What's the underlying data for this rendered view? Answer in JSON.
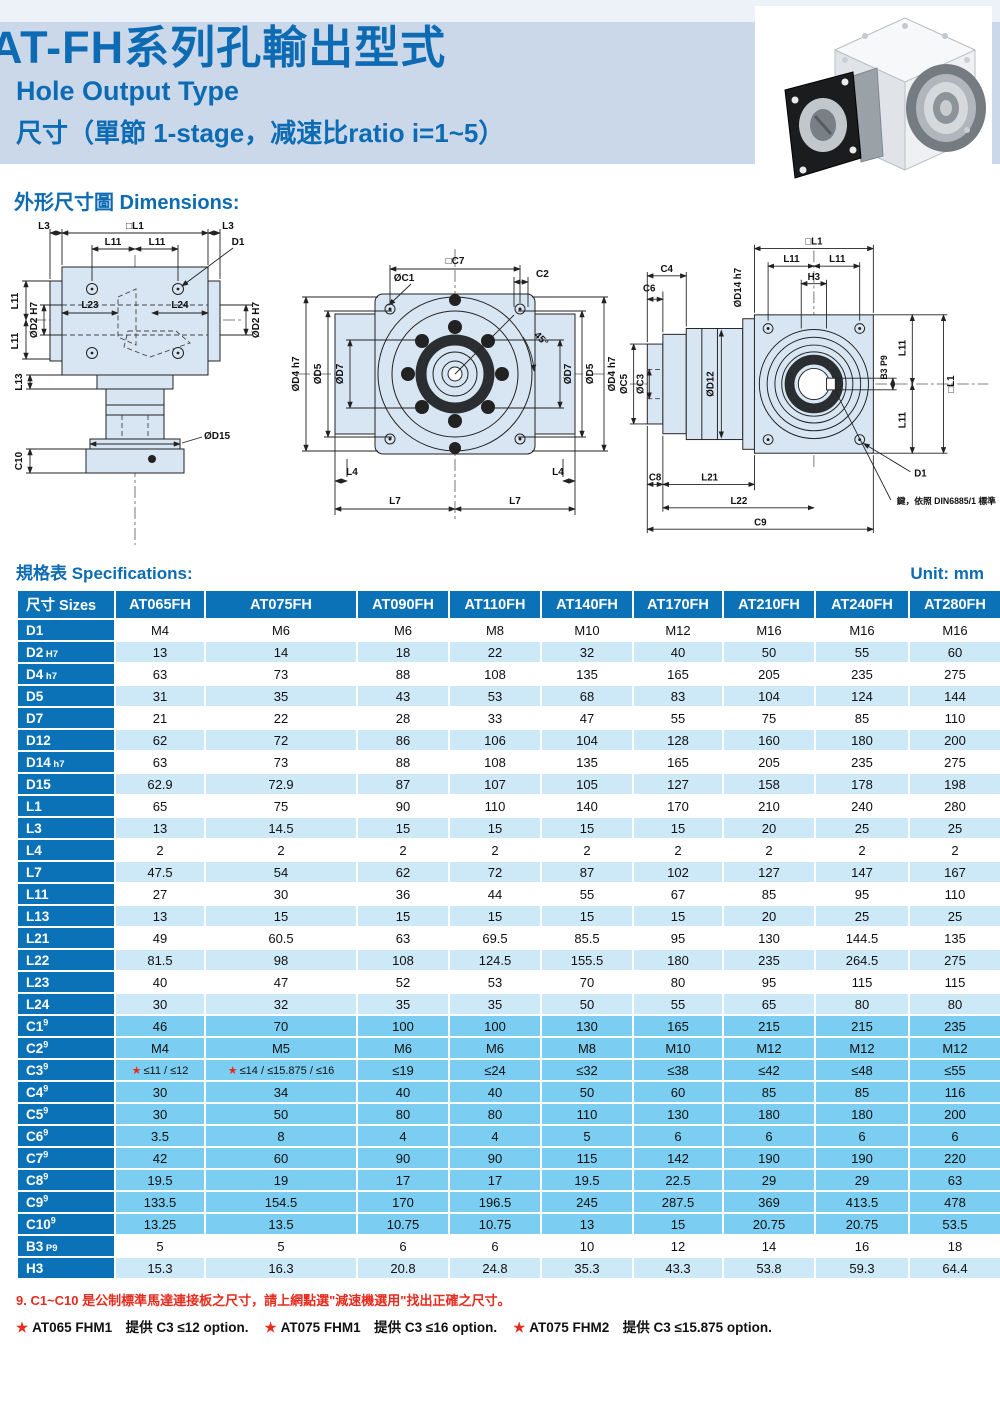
{
  "header": {
    "title": "AT-FH系列孔輸出型式",
    "subtitle_en": "Hole Output Type",
    "subtitle_zh": "尺寸（單節 1-stage，减速比ratio i=1~5）"
  },
  "sections": {
    "dimensions_heading": "外形尺寸圖 Dimensions:",
    "specs_heading": "規格表 Specifications:",
    "unit": "Unit: mm"
  },
  "drawings": {
    "left": {
      "l3_a": "L3",
      "l1": "□L1",
      "l3_b": "L3",
      "l11_a": "L11",
      "l11_b": "L11",
      "d1": "D1",
      "l23": "L23",
      "l24": "L24",
      "d2_r": "ØD2 H7",
      "l11_c": "L11",
      "l11_d": "L11",
      "d2_l": "ØD2 H7",
      "l13": "L13",
      "c10": "C10",
      "d15": "ØD15"
    },
    "front": {
      "c7": "□C7",
      "c1": "ØC1",
      "c2": "C2",
      "angle": "45°",
      "d4_l": "ØD4 h7",
      "d5_l": "ØD5",
      "d7_l": "ØD7",
      "d7_r": "ØD7",
      "d5_r": "ØD5",
      "d4_r": "ØD4 h7",
      "l4_a": "L4",
      "l4_b": "L4",
      "l7_a": "L7",
      "l7_b": "L7"
    },
    "right": {
      "c4": "C4",
      "c6": "C6",
      "d14": "ØD14 h7",
      "l1_top": "□L1",
      "l11_a": "L11",
      "l11_b": "L11",
      "h3": "H3",
      "c5": "ØC5",
      "c3": "ØC3",
      "d12": "ØD12",
      "l11_c": "L11",
      "l11_d": "L11",
      "b3": "B3 P9",
      "l1_r": "□L1",
      "d1": "D1",
      "c8": "C8",
      "l21": "L21",
      "l22": "L22",
      "c9": "C9",
      "key_note": "鍵，依照 DIN6885/1 標準"
    }
  },
  "table": {
    "size_header": "尺寸 Sizes",
    "columns": [
      "AT065FH",
      "AT075FH",
      "AT090FH",
      "AT110FH",
      "AT140FH",
      "AT170FH",
      "AT210FH",
      "AT240FH",
      "AT280FH"
    ],
    "rows": [
      {
        "label": "D1",
        "suffix": "",
        "sup": "",
        "bg": "w",
        "values": [
          "M4",
          "M6",
          "M6",
          "M8",
          "M10",
          "M12",
          "M16",
          "M16",
          "M16"
        ]
      },
      {
        "label": "D2",
        "suffix": "H7",
        "sup": "",
        "bg": "lb",
        "values": [
          "13",
          "14",
          "18",
          "22",
          "32",
          "40",
          "50",
          "55",
          "60"
        ]
      },
      {
        "label": "D4",
        "suffix": "h7",
        "sup": "",
        "bg": "w",
        "values": [
          "63",
          "73",
          "88",
          "108",
          "135",
          "165",
          "205",
          "235",
          "275"
        ]
      },
      {
        "label": "D5",
        "suffix": "",
        "sup": "",
        "bg": "lb",
        "values": [
          "31",
          "35",
          "43",
          "53",
          "68",
          "83",
          "104",
          "124",
          "144"
        ]
      },
      {
        "label": "D7",
        "suffix": "",
        "sup": "",
        "bg": "w",
        "values": [
          "21",
          "22",
          "28",
          "33",
          "47",
          "55",
          "75",
          "85",
          "110"
        ]
      },
      {
        "label": "D12",
        "suffix": "",
        "sup": "",
        "bg": "lb",
        "values": [
          "62",
          "72",
          "86",
          "106",
          "104",
          "128",
          "160",
          "180",
          "200"
        ]
      },
      {
        "label": "D14",
        "suffix": "h7",
        "sup": "",
        "bg": "w",
        "values": [
          "63",
          "73",
          "88",
          "108",
          "135",
          "165",
          "205",
          "235",
          "275"
        ]
      },
      {
        "label": "D15",
        "suffix": "",
        "sup": "",
        "bg": "lb",
        "values": [
          "62.9",
          "72.9",
          "87",
          "107",
          "105",
          "127",
          "158",
          "178",
          "198"
        ]
      },
      {
        "label": "L1",
        "suffix": "",
        "sup": "",
        "bg": "w",
        "values": [
          "65",
          "75",
          "90",
          "110",
          "140",
          "170",
          "210",
          "240",
          "280"
        ]
      },
      {
        "label": "L3",
        "suffix": "",
        "sup": "",
        "bg": "lb",
        "values": [
          "13",
          "14.5",
          "15",
          "15",
          "15",
          "15",
          "20",
          "25",
          "25"
        ]
      },
      {
        "label": "L4",
        "suffix": "",
        "sup": "",
        "bg": "w",
        "values": [
          "2",
          "2",
          "2",
          "2",
          "2",
          "2",
          "2",
          "2",
          "2"
        ]
      },
      {
        "label": "L7",
        "suffix": "",
        "sup": "",
        "bg": "lb",
        "values": [
          "47.5",
          "54",
          "62",
          "72",
          "87",
          "102",
          "127",
          "147",
          "167"
        ]
      },
      {
        "label": "L11",
        "suffix": "",
        "sup": "",
        "bg": "w",
        "values": [
          "27",
          "30",
          "36",
          "44",
          "55",
          "67",
          "85",
          "95",
          "110"
        ]
      },
      {
        "label": "L13",
        "suffix": "",
        "sup": "",
        "bg": "lb",
        "values": [
          "13",
          "15",
          "15",
          "15",
          "15",
          "15",
          "20",
          "25",
          "25"
        ]
      },
      {
        "label": "L21",
        "suffix": "",
        "sup": "",
        "bg": "w",
        "values": [
          "49",
          "60.5",
          "63",
          "69.5",
          "85.5",
          "95",
          "130",
          "144.5",
          "135"
        ]
      },
      {
        "label": "L22",
        "suffix": "",
        "sup": "",
        "bg": "lb",
        "values": [
          "81.5",
          "98",
          "108",
          "124.5",
          "155.5",
          "180",
          "235",
          "264.5",
          "275"
        ]
      },
      {
        "label": "L23",
        "suffix": "",
        "sup": "",
        "bg": "w",
        "values": [
          "40",
          "47",
          "52",
          "53",
          "70",
          "80",
          "95",
          "115",
          "115"
        ]
      },
      {
        "label": "L24",
        "suffix": "",
        "sup": "",
        "bg": "lb",
        "values": [
          "30",
          "32",
          "35",
          "35",
          "50",
          "55",
          "65",
          "80",
          "80"
        ]
      },
      {
        "label": "C1",
        "suffix": "",
        "sup": "9",
        "bg": "cy",
        "values": [
          "46",
          "70",
          "100",
          "100",
          "130",
          "165",
          "215",
          "215",
          "235"
        ]
      },
      {
        "label": "C2",
        "suffix": "",
        "sup": "9",
        "bg": "cy",
        "values": [
          "M4",
          "M5",
          "M6",
          "M6",
          "M8",
          "M10",
          "M12",
          "M12",
          "M12"
        ]
      },
      {
        "label": "C3",
        "suffix": "",
        "sup": "9",
        "bg": "cy",
        "values": [
          "★ ≤11 / ≤12",
          "★ ≤14 / ≤15.875 / ≤16",
          "≤19",
          "≤24",
          "≤32",
          "≤38",
          "≤42",
          "≤48",
          "≤55"
        ]
      },
      {
        "label": "C4",
        "suffix": "",
        "sup": "9",
        "bg": "cy",
        "values": [
          "30",
          "34",
          "40",
          "40",
          "50",
          "60",
          "85",
          "85",
          "116"
        ]
      },
      {
        "label": "C5",
        "suffix": "",
        "sup": "9",
        "bg": "cy",
        "values": [
          "30",
          "50",
          "80",
          "80",
          "110",
          "130",
          "180",
          "180",
          "200"
        ]
      },
      {
        "label": "C6",
        "suffix": "",
        "sup": "9",
        "bg": "cy",
        "values": [
          "3.5",
          "8",
          "4",
          "4",
          "5",
          "6",
          "6",
          "6",
          "6"
        ]
      },
      {
        "label": "C7",
        "suffix": "",
        "sup": "9",
        "bg": "cy",
        "values": [
          "42",
          "60",
          "90",
          "90",
          "115",
          "142",
          "190",
          "190",
          "220"
        ]
      },
      {
        "label": "C8",
        "suffix": "",
        "sup": "9",
        "bg": "cy",
        "values": [
          "19.5",
          "19",
          "17",
          "17",
          "19.5",
          "22.5",
          "29",
          "29",
          "63"
        ]
      },
      {
        "label": "C9",
        "suffix": "",
        "sup": "9",
        "bg": "cy",
        "values": [
          "133.5",
          "154.5",
          "170",
          "196.5",
          "245",
          "287.5",
          "369",
          "413.5",
          "478"
        ]
      },
      {
        "label": "C10",
        "suffix": "",
        "sup": "9",
        "bg": "cy",
        "values": [
          "13.25",
          "13.5",
          "10.75",
          "10.75",
          "13",
          "15",
          "20.75",
          "20.75",
          "53.5"
        ]
      },
      {
        "label": "B3",
        "suffix": "P9",
        "sup": "",
        "bg": "w",
        "values": [
          "5",
          "5",
          "6",
          "6",
          "10",
          "12",
          "14",
          "16",
          "18"
        ]
      },
      {
        "label": "H3",
        "suffix": "",
        "sup": "",
        "bg": "lb",
        "values": [
          "15.3",
          "16.3",
          "20.8",
          "24.8",
          "35.3",
          "43.3",
          "53.8",
          "59.3",
          "64.4"
        ]
      }
    ]
  },
  "footnotes": {
    "note9": "9. C1~C10 是公制標準馬達連接板之尺寸，請上網點選\"減速機選用\"找出正確之尺寸。",
    "stars": [
      {
        "star": "★",
        "model": "AT065 FHM1",
        "text": "提供 C3 ≤12 option."
      },
      {
        "star": "★",
        "model": "AT075 FHM1",
        "text": "提供 C3 ≤16 option."
      },
      {
        "star": "★",
        "model": "AT075 FHM2",
        "text": "提供 C3 ≤15.875 option."
      }
    ]
  },
  "colors": {
    "accent_blue": "#0d6bb3",
    "table_header_blue": "#0c72b8",
    "light_row": "#cde9f8",
    "cyan_row": "#7bcef1",
    "band": "#cbd8ea",
    "red": "#e62c1e"
  }
}
